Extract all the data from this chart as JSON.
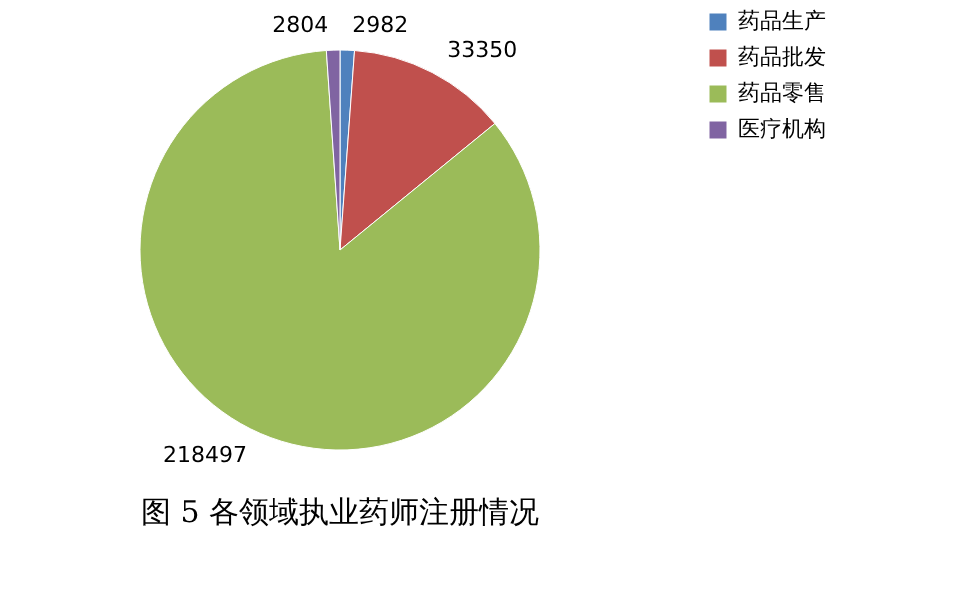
{
  "chart_data": {
    "type": "pie",
    "title": "图 5 各领域执业药师注册情况",
    "categories": [
      "药品生产",
      "药品批发",
      "药品零售",
      "医疗机构"
    ],
    "values": [
      2982,
      33350,
      218497,
      2804
    ],
    "colors": [
      "#4f81bd",
      "#c0504d",
      "#9bbb59",
      "#8064a2"
    ],
    "data_labels": true,
    "legend": "right"
  }
}
